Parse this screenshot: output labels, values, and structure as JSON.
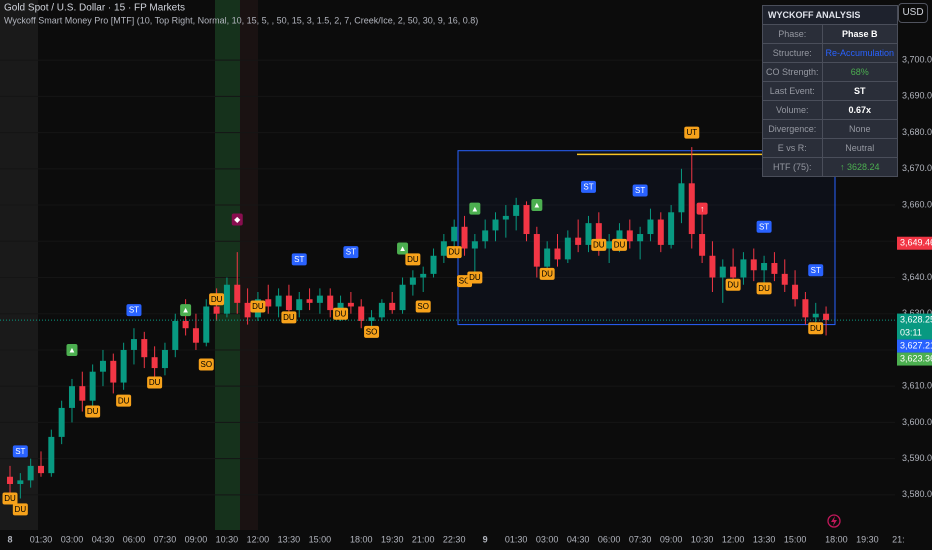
{
  "chart_data": {
    "type": "candlestick",
    "title": "Gold Spot / U.S. Dollar · 15 · FP Markets",
    "subtitle": "Wyckoff Smart Money Pro [MTF] (10, Top Right, Normal, 10, 15, 5, , 50, 15, 3, 1.5, 2, 7, Creek/Ice, 2, 50, 30, 9, 16, 0.8)",
    "currency": "USD",
    "categories": [
      "8",
      null,
      null,
      "01:30",
      null,
      null,
      "03:00",
      null,
      null,
      "04:30",
      null,
      null,
      "06:00",
      null,
      null,
      "07:30",
      null,
      null,
      "09:00",
      null,
      null,
      "10:30",
      null,
      null,
      "12:00",
      null,
      null,
      "13:30",
      null,
      null,
      "15:00",
      null,
      null,
      null,
      "18:00",
      null,
      null,
      "19:30",
      null,
      null,
      "21:00",
      null,
      null,
      "22:30",
      null,
      null,
      "9",
      null,
      null,
      "01:30",
      null,
      null,
      "03:00",
      null,
      null,
      "04:30",
      null,
      null,
      "06:00",
      null,
      null,
      "07:30",
      null,
      null,
      "09:00",
      null,
      null,
      "10:30",
      null,
      null,
      "12:00",
      null,
      null,
      "13:30",
      null,
      null,
      "15:00",
      null,
      null,
      null,
      "18:00",
      null,
      null,
      "19:30",
      null,
      null,
      "21:"
    ],
    "open": [
      3585,
      3583,
      3584,
      3588,
      3586,
      3596,
      3604,
      3610,
      3606,
      3614,
      3617,
      3611,
      3620,
      3623,
      3618,
      3615,
      3620,
      3628,
      3626,
      3622,
      3632,
      3630,
      3638,
      3633,
      3629,
      3634,
      3632,
      3635,
      3631,
      3634,
      3633,
      3635,
      3631,
      3633,
      3632,
      3628,
      3629,
      3633,
      3631,
      3638,
      3640,
      3641,
      3646,
      3650,
      3654,
      3648,
      3650,
      3653,
      3656,
      3657,
      3660,
      3652,
      3643,
      3648,
      3645,
      3651,
      3649,
      3655,
      3648,
      3650,
      3653,
      3650,
      3652,
      3656,
      3649,
      3658,
      3666,
      3652,
      3646,
      3640,
      3643,
      3640,
      3645,
      3642,
      3644,
      3641,
      3638,
      3634,
      3629,
      3630,
      null,
      null,
      null,
      null,
      null,
      null,
      null
    ],
    "high": [
      3588,
      3586,
      3590,
      3592,
      3598,
      3606,
      3612,
      3614,
      3616,
      3620,
      3619,
      3622,
      3626,
      3625,
      3621,
      3622,
      3630,
      3634,
      3630,
      3634,
      3637,
      3640,
      3647,
      3637,
      3636,
      3638,
      3637,
      3638,
      3636,
      3637,
      3637,
      3637,
      3635,
      3636,
      3634,
      3631,
      3634,
      3636,
      3640,
      3642,
      3643,
      3648,
      3652,
      3656,
      3657,
      3652,
      3656,
      3658,
      3660,
      3662,
      3661,
      3654,
      3650,
      3652,
      3653,
      3656,
      3657,
      3658,
      3652,
      3655,
      3656,
      3654,
      3659,
      3658,
      3660,
      3670,
      3676,
      3658,
      3650,
      3645,
      3648,
      3647,
      3648,
      3646,
      3647,
      3645,
      3642,
      3636,
      3633,
      3632,
      null,
      null,
      null,
      null,
      null,
      null,
      null
    ],
    "low": [
      3580,
      3579,
      3582,
      3585,
      3585,
      3594,
      3600,
      3603,
      3604,
      3610,
      3608,
      3609,
      3616,
      3615,
      3612,
      3613,
      3618,
      3624,
      3620,
      3621,
      3628,
      3629,
      3630,
      3627,
      3628,
      3630,
      3629,
      3630,
      3629,
      3631,
      3630,
      3629,
      3628,
      3630,
      3626,
      3625,
      3628,
      3630,
      3630,
      3635,
      3636,
      3640,
      3644,
      3647,
      3646,
      3641,
      3648,
      3650,
      3651,
      3653,
      3650,
      3640,
      3641,
      3643,
      3644,
      3647,
      3647,
      3646,
      3644,
      3647,
      3648,
      3645,
      3650,
      3647,
      3648,
      3655,
      3648,
      3644,
      3636,
      3633,
      3638,
      3638,
      3639,
      3637,
      3639,
      3636,
      3632,
      3627,
      3625,
      3624,
      null,
      null,
      null,
      null,
      null,
      null,
      null
    ],
    "close": [
      3583,
      3584,
      3588,
      3586,
      3596,
      3604,
      3610,
      3606,
      3614,
      3617,
      3611,
      3620,
      3623,
      3618,
      3615,
      3620,
      3628,
      3626,
      3622,
      3632,
      3630,
      3638,
      3633,
      3629,
      3634,
      3632,
      3635,
      3631,
      3634,
      3633,
      3635,
      3631,
      3633,
      3632,
      3628,
      3629,
      3633,
      3631,
      3638,
      3640,
      3641,
      3646,
      3650,
      3654,
      3648,
      3650,
      3653,
      3656,
      3657,
      3660,
      3652,
      3643,
      3648,
      3645,
      3651,
      3649,
      3655,
      3648,
      3650,
      3653,
      3650,
      3652,
      3656,
      3649,
      3658,
      3666,
      3652,
      3646,
      3640,
      3643,
      3640,
      3645,
      3642,
      3644,
      3641,
      3638,
      3634,
      3629,
      3630,
      3628.25,
      null,
      null,
      null,
      null,
      null,
      null,
      null
    ],
    "up_color": "#089981",
    "down_color": "#f23645",
    "ylim": [
      3570.3,
      3716.6
    ],
    "yticks": [
      {
        "value": 3580,
        "label": "3,580.00"
      },
      {
        "value": 3590,
        "label": "3,590.00"
      },
      {
        "value": 3600,
        "label": "3,600.00"
      },
      {
        "value": 3610,
        "label": "3,610.00"
      },
      {
        "value": 3620,
        "label": "3,620.00"
      },
      {
        "value": 3630,
        "label": "3,630.00"
      },
      {
        "value": 3640,
        "label": "3,640.00"
      },
      {
        "value": 3650,
        "label": "3,650.00"
      },
      {
        "value": 3660,
        "label": "3,660.00"
      },
      {
        "value": 3670,
        "label": "3,670.00"
      },
      {
        "value": 3680,
        "label": "3,680.00"
      },
      {
        "value": 3690,
        "label": "3,690.00"
      },
      {
        "value": 3700,
        "label": "3,700.00"
      }
    ],
    "range_box": {
      "high": 3675,
      "low": 3627,
      "resistance": 3674,
      "color": "#2962ff",
      "resistance_color": "#f7c325"
    },
    "price_tags": [
      {
        "value": 3649.46,
        "label": "3,649.46",
        "color": "#f23645"
      },
      {
        "value": 3628.25,
        "label": "3,628.25",
        "color": "#089981",
        "countdown": "03:11"
      },
      {
        "value": 3627.21,
        "label": "3,627.21",
        "color": "#2962ff"
      },
      {
        "value": 3623.36,
        "label": "3,623.36",
        "color": "#4caf50"
      }
    ],
    "markers": [
      {
        "label": "ST",
        "index": 1,
        "price": 3592,
        "color": "#2962ff"
      },
      {
        "label": "DU",
        "index": 0,
        "price": 3579,
        "color": "#f7a21b"
      },
      {
        "label": "DU",
        "index": 1,
        "price": 3576,
        "color": "#f7a21b"
      },
      {
        "label": "▲",
        "index": 6,
        "price": 3620,
        "color": "#4caf50"
      },
      {
        "label": "DU",
        "index": 8,
        "price": 3603,
        "color": "#f7a21b"
      },
      {
        "label": "DU",
        "index": 11,
        "price": 3606,
        "color": "#f7a21b"
      },
      {
        "label": "ST",
        "index": 12,
        "price": 3631,
        "color": "#2962ff"
      },
      {
        "label": "DU",
        "index": 14,
        "price": 3611,
        "color": "#f7a21b"
      },
      {
        "label": "▲",
        "index": 17,
        "price": 3631,
        "color": "#4caf50"
      },
      {
        "label": "SO",
        "index": 19,
        "price": 3616,
        "color": "#f7a21b"
      },
      {
        "label": "◆",
        "index": 22,
        "price": 3656,
        "color": "#880e4f"
      },
      {
        "label": "DU",
        "index": 20,
        "price": 3634,
        "color": "#f7a21b"
      },
      {
        "label": "DU",
        "index": 24,
        "price": 3632,
        "color": "#f7a21b"
      },
      {
        "label": "DU",
        "index": 27,
        "price": 3629,
        "color": "#f7a21b"
      },
      {
        "label": "ST",
        "index": 28,
        "price": 3645,
        "color": "#2962ff"
      },
      {
        "label": "DU",
        "index": 32,
        "price": 3630,
        "color": "#f7a21b"
      },
      {
        "label": "ST",
        "index": 33,
        "price": 3647,
        "color": "#2962ff"
      },
      {
        "label": "SO",
        "index": 35,
        "price": 3625,
        "color": "#f7a21b"
      },
      {
        "label": "▲",
        "index": 38,
        "price": 3648,
        "color": "#4caf50"
      },
      {
        "label": "DU",
        "index": 39,
        "price": 3645,
        "color": "#f7a21b"
      },
      {
        "label": "SO",
        "index": 40,
        "price": 3632,
        "color": "#f7a21b"
      },
      {
        "label": "DU",
        "index": 43,
        "price": 3647,
        "color": "#f7a21b"
      },
      {
        "label": "SO",
        "index": 44,
        "price": 3639,
        "color": "#f7a21b"
      },
      {
        "label": "▲",
        "index": 45,
        "price": 3659,
        "color": "#4caf50"
      },
      {
        "label": "DU",
        "index": 45,
        "price": 3640,
        "color": "#f7a21b"
      },
      {
        "label": "▲",
        "index": 51,
        "price": 3660,
        "color": "#4caf50"
      },
      {
        "label": "DU",
        "index": 52,
        "price": 3641,
        "color": "#f7a21b"
      },
      {
        "label": "ST",
        "index": 56,
        "price": 3665,
        "color": "#2962ff"
      },
      {
        "label": "DU",
        "index": 57,
        "price": 3649,
        "color": "#f7a21b"
      },
      {
        "label": "DU",
        "index": 59,
        "price": 3649,
        "color": "#f7a21b"
      },
      {
        "label": "ST",
        "index": 61,
        "price": 3664,
        "color": "#2962ff"
      },
      {
        "label": "UT",
        "index": 66,
        "price": 3680,
        "color": "#f7a21b"
      },
      {
        "label": "↑",
        "index": 67,
        "price": 3659,
        "color": "#f23645"
      },
      {
        "label": "DU",
        "index": 70,
        "price": 3638,
        "color": "#f7a21b"
      },
      {
        "label": "DU",
        "index": 73,
        "price": 3637,
        "color": "#f7a21b"
      },
      {
        "label": "ST",
        "index": 73,
        "price": 3654,
        "color": "#2962ff"
      },
      {
        "label": "ST",
        "index": 78,
        "price": 3642,
        "color": "#2962ff"
      },
      {
        "label": "DU",
        "index": 78,
        "price": 3626,
        "color": "#f7a21b"
      }
    ]
  },
  "panel": {
    "title": "WYCKOFF ANALYSIS",
    "rows": [
      {
        "label": "Phase:",
        "value": "Phase B",
        "color": "#ffffff"
      },
      {
        "label": "Structure:",
        "value": "Re-Accumulation",
        "color": "#2962ff"
      },
      {
        "label": "CO Strength:",
        "value": "68%",
        "color": "#4caf50"
      },
      {
        "label": "Last Event:",
        "value": "ST",
        "color": "#ffffff"
      },
      {
        "label": "Volume:",
        "value": "0.67x",
        "color": "#ffffff"
      },
      {
        "label": "Divergence:",
        "value": "None",
        "color": "#9598a1"
      },
      {
        "label": "E vs R:",
        "value": "Neutral",
        "color": "#9598a1"
      },
      {
        "label": "HTF (75):",
        "value": "↑ 3628.24",
        "color": "#4caf50"
      }
    ]
  }
}
